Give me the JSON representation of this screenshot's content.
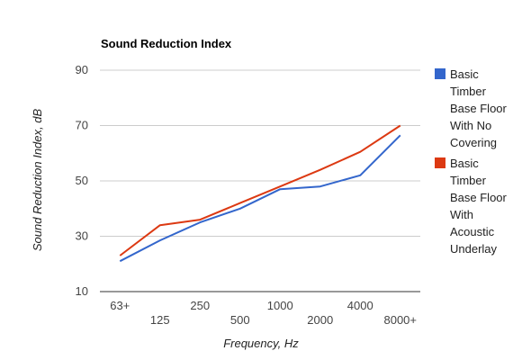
{
  "chart_data": {
    "type": "line",
    "title": "Sound Reduction Index",
    "xlabel": "Frequency, Hz",
    "ylabel": "Sound Reduction Index, dB",
    "categories": [
      "63+",
      "125",
      "250",
      "500",
      "1000",
      "2000",
      "4000",
      "8000+"
    ],
    "ylim": [
      10,
      90
    ],
    "yticks": [
      10,
      30,
      50,
      70,
      90
    ],
    "grid": true,
    "legend_position": "right",
    "series": [
      {
        "name_lines": [
          "Basic",
          "Timber",
          "Base Floor",
          "With No",
          "Covering"
        ],
        "color": "#3366cc",
        "values": [
          21,
          28.5,
          35,
          40,
          47,
          48,
          52,
          66.5
        ]
      },
      {
        "name_lines": [
          "Basic",
          "Timber",
          "Base Floor",
          "With",
          "Acoustic",
          "Underlay"
        ],
        "color": "#dc3912",
        "values": [
          23,
          34,
          36,
          42,
          48,
          54,
          60.5,
          70
        ]
      }
    ]
  }
}
